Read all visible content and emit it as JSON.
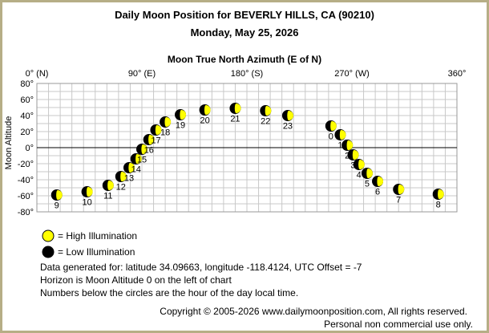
{
  "header": {
    "title": "Daily Moon Position for BEVERLY HILLS, CA (90210)",
    "date": "Monday, May 25, 2026"
  },
  "legend": {
    "high": "= High Illumination",
    "low": "= Low Illumination",
    "high_color": "#ffff00",
    "low_color": "#000000"
  },
  "info": {
    "line1": "Data generated for: latitude 34.09663, longitude -118.4124, UTC Offset = -7",
    "line2": "Horizon is Moon Altitude 0 on the left of chart",
    "line3": "Numbers below the circles are the hour of the day local time."
  },
  "footer": {
    "copyright": "Copyright © 2005-2026 www.dailymoonposition.com, All rights reserved.",
    "personal": "Personal non commercial use only."
  },
  "chart_data": {
    "type": "scatter",
    "xlabel": "Moon True North Azimuth (E of N)",
    "ylabel": "Moon Altitude",
    "xlim": [
      0,
      360
    ],
    "ylim": [
      -80,
      80
    ],
    "x_ticks": [
      {
        "value": 0,
        "label": "0° (N)"
      },
      {
        "value": 90,
        "label": "90° (E)"
      },
      {
        "value": 180,
        "label": "180° (S)"
      },
      {
        "value": 270,
        "label": "270° (W)"
      },
      {
        "value": 360,
        "label": "360°"
      }
    ],
    "y_ticks": [
      {
        "value": 80,
        "label": "80°"
      },
      {
        "value": 60,
        "label": "60°"
      },
      {
        "value": 40,
        "label": "40°"
      },
      {
        "value": 20,
        "label": "20°"
      },
      {
        "value": 0,
        "label": "0°"
      },
      {
        "value": -20,
        "label": "-20°"
      },
      {
        "value": -40,
        "label": "-40°"
      },
      {
        "value": -60,
        "label": "-60°"
      },
      {
        "value": -80,
        "label": "-80°"
      }
    ],
    "grid": true,
    "points": [
      {
        "hour": "0",
        "az": 252,
        "alt": 27
      },
      {
        "hour": "1",
        "az": 260,
        "alt": 16
      },
      {
        "hour": "2",
        "az": 266,
        "alt": 3
      },
      {
        "hour": "3",
        "az": 271,
        "alt": -9
      },
      {
        "hour": "4",
        "az": 276,
        "alt": -21
      },
      {
        "hour": "5",
        "az": 283,
        "alt": -32
      },
      {
        "hour": "6",
        "az": 292,
        "alt": -42
      },
      {
        "hour": "7",
        "az": 310,
        "alt": -52
      },
      {
        "hour": "8",
        "az": 344,
        "alt": -58
      },
      {
        "hour": "9",
        "az": 17,
        "alt": -59
      },
      {
        "hour": "10",
        "az": 43,
        "alt": -55
      },
      {
        "hour": "11",
        "az": 61,
        "alt": -47
      },
      {
        "hour": "12",
        "az": 72,
        "alt": -36
      },
      {
        "hour": "13",
        "az": 79,
        "alt": -25
      },
      {
        "hour": "14",
        "az": 85,
        "alt": -14
      },
      {
        "hour": "15",
        "az": 90,
        "alt": -2
      },
      {
        "hour": "16",
        "az": 96,
        "alt": 10
      },
      {
        "hour": "17",
        "az": 102,
        "alt": 22
      },
      {
        "hour": "18",
        "az": 110,
        "alt": 32
      },
      {
        "hour": "19",
        "az": 123,
        "alt": 41
      },
      {
        "hour": "20",
        "az": 144,
        "alt": 47
      },
      {
        "hour": "21",
        "az": 170,
        "alt": 49
      },
      {
        "hour": "22",
        "az": 196,
        "alt": 46
      },
      {
        "hour": "23",
        "az": 215,
        "alt": 40
      }
    ]
  }
}
